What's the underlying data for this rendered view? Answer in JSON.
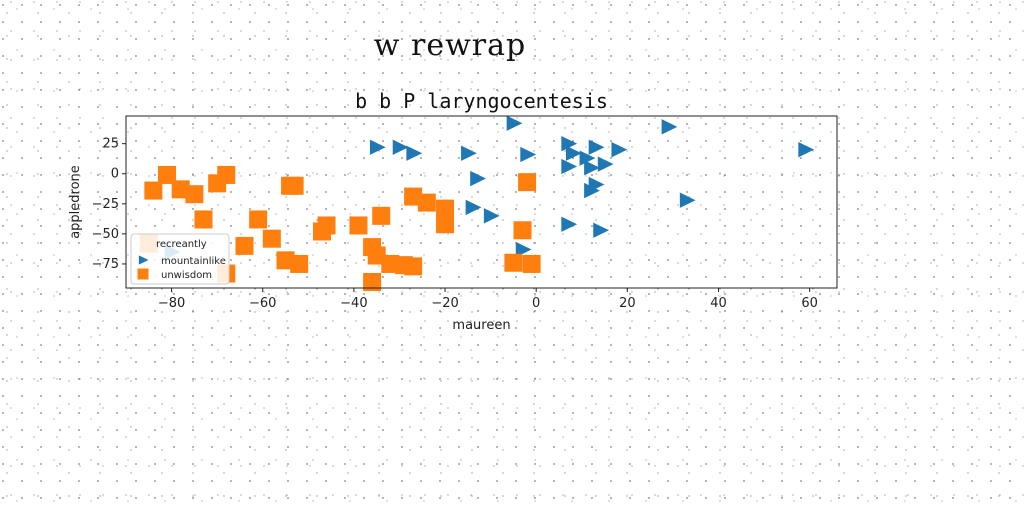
{
  "figure_title": "w rewrap",
  "chart_data": {
    "type": "scatter",
    "title": "b b P laryngocentesis",
    "xlabel": "maureen",
    "ylabel": "appledrone",
    "xlim": [
      -90,
      66
    ],
    "ylim": [
      -95,
      48
    ],
    "xticks": [
      -80,
      -60,
      -40,
      -20,
      0,
      20,
      40,
      60
    ],
    "yticks": [
      25,
      0,
      -25,
      -50,
      -75
    ],
    "grid": false,
    "legend": {
      "title": "recreantly",
      "placement": "lower-left"
    },
    "series": [
      {
        "name": "mountainlike",
        "marker": "triangle-right",
        "color": "#1f77b4",
        "points": [
          [
            -5,
            42
          ],
          [
            29,
            39
          ],
          [
            7,
            25
          ],
          [
            13,
            22
          ],
          [
            18,
            20
          ],
          [
            59,
            20
          ],
          [
            -35,
            22
          ],
          [
            -30,
            22
          ],
          [
            -27,
            17
          ],
          [
            -15,
            17
          ],
          [
            -2,
            16
          ],
          [
            8,
            17
          ],
          [
            11,
            13
          ],
          [
            15,
            8
          ],
          [
            7,
            6
          ],
          [
            12,
            5
          ],
          [
            -13,
            -4
          ],
          [
            13,
            -9
          ],
          [
            12,
            -14
          ],
          [
            33,
            -22
          ],
          [
            -14,
            -28
          ],
          [
            -10,
            -35
          ],
          [
            7,
            -42
          ],
          [
            14,
            -47
          ],
          [
            -3,
            -63
          ],
          [
            -80,
            -65
          ]
        ]
      },
      {
        "name": "unwisdom",
        "marker": "square",
        "color": "#ff7f0e",
        "points": [
          [
            -81,
            -1
          ],
          [
            -68,
            -1
          ],
          [
            -84,
            -14
          ],
          [
            -78,
            -13
          ],
          [
            -75,
            -17
          ],
          [
            -70,
            -8
          ],
          [
            -54,
            -10
          ],
          [
            -53,
            -10
          ],
          [
            -27,
            -19
          ],
          [
            -24,
            -24
          ],
          [
            -2,
            -7
          ],
          [
            -20,
            -29
          ],
          [
            -20,
            -42
          ],
          [
            -34,
            -35
          ],
          [
            -39,
            -43
          ],
          [
            -46,
            -43
          ],
          [
            -73,
            -38
          ],
          [
            -61,
            -38
          ],
          [
            -3,
            -47
          ],
          [
            -47,
            -48
          ],
          [
            -58,
            -54
          ],
          [
            -64,
            -60
          ],
          [
            -36,
            -61
          ],
          [
            -35,
            -68
          ],
          [
            -55,
            -72
          ],
          [
            -52,
            -75
          ],
          [
            -32,
            -75
          ],
          [
            -29,
            -76
          ],
          [
            -27,
            -77
          ],
          [
            -5,
            -74
          ],
          [
            -1,
            -75
          ],
          [
            -68,
            -83
          ],
          [
            -85,
            -58
          ],
          [
            -36,
            -90
          ]
        ]
      }
    ]
  }
}
